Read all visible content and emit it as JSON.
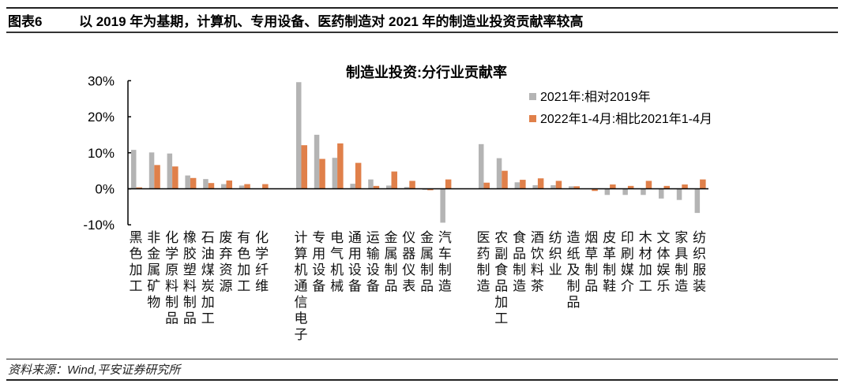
{
  "header": {
    "figure_number": "图表6",
    "title": "以 2019 年为基期，计算机、专用设备、医药制造对 2021 年的制造业投资贡献率较高"
  },
  "footer": {
    "source": "资料来源：Wind,平安证券研究所"
  },
  "colors": {
    "series_2021": "#b4b4b4",
    "series_2022": "#e0804a",
    "axis": "#000000"
  },
  "chart_data": {
    "type": "bar",
    "title": "制造业投资:分行业贡献率",
    "xlabel": "",
    "ylabel": "",
    "ylim": [
      -10,
      30
    ],
    "yticks": [
      30,
      20,
      10,
      0,
      -10
    ],
    "ytick_labels": [
      "30%",
      "20%",
      "10%",
      "0%",
      "-10%"
    ],
    "grid": false,
    "legend_position": "upper right",
    "groups": [
      {
        "start": 0,
        "count": 8
      },
      {
        "start": 8,
        "count": 9
      },
      {
        "start": 17,
        "count": 13
      }
    ],
    "categories": [
      "黑色加工",
      "非金属矿物",
      "化学原料制品",
      "橡胶塑料制品",
      "石油煤炭加工",
      "废弃资源",
      "有色加工",
      "化学纤维",
      "计算机通信电子",
      "专用设备",
      "电气机械",
      "通用设备",
      "运输设备",
      "金属制品",
      "仪器仪表",
      "金属制品",
      "汽车制造",
      "医药制造",
      "农副食品加工",
      "食品制造",
      "酒饮料茶",
      "纺织业",
      "造纸及制品",
      "烟草制品",
      "皮革制鞋",
      "印刷媒介",
      "木材加工",
      "文体娱乐",
      "家具制造",
      "纺织服装"
    ],
    "series": [
      {
        "name": "2021年:相对2019年",
        "color": "#b4b4b4",
        "values": [
          10.8,
          10.1,
          9.8,
          3.7,
          2.7,
          1.3,
          0.9,
          0.0,
          29.6,
          15.0,
          8.6,
          1.4,
          2.6,
          0.9,
          0.5,
          -0.3,
          -9.4,
          12.4,
          8.5,
          1.8,
          1.0,
          1.0,
          0.7,
          0.0,
          -1.7,
          -1.7,
          -1.7,
          -2.7,
          -3.1,
          -6.7
        ]
      },
      {
        "name": "2022年1-4月:相比2021年1-4月",
        "color": "#e0804a",
        "values": [
          0.4,
          6.6,
          6.2,
          3.0,
          1.6,
          2.3,
          1.3,
          1.3,
          12.1,
          8.3,
          12.6,
          7.2,
          0.8,
          4.8,
          2.2,
          -0.4,
          2.6,
          1.7,
          5.0,
          2.5,
          2.9,
          2.2,
          0.7,
          -0.6,
          1.2,
          0.8,
          2.2,
          0.8,
          1.2,
          2.6
        ]
      }
    ]
  }
}
